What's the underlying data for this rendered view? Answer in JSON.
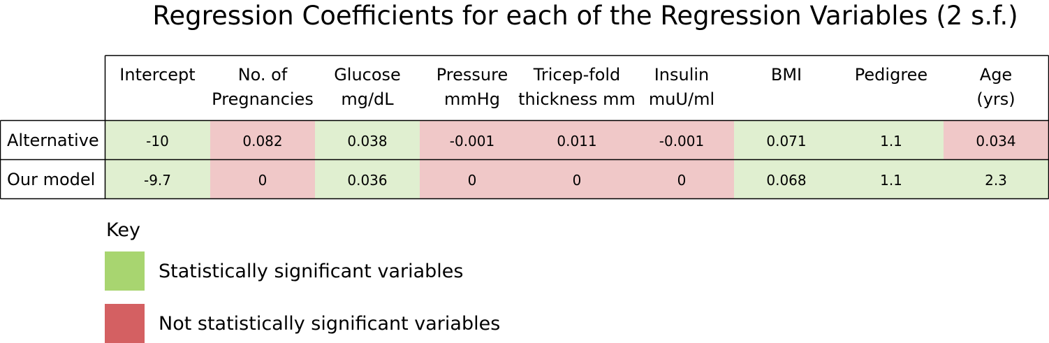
{
  "colors": {
    "significant_cell": "#e0efd0",
    "not_significant_cell": "#f0c8c8",
    "significant_swatch": "#a8d570",
    "not_significant_swatch": "#d46062",
    "border": "#000000"
  },
  "chart_data": {
    "type": "table",
    "title": "Regression Coefficients for each of the Regression Variables (2 s.f.)",
    "columns": [
      [
        "Intercept"
      ],
      [
        "No. of",
        "Pregnancies"
      ],
      [
        "Glucose",
        "mg/dL"
      ],
      [
        "Pressure",
        "mmHg"
      ],
      [
        "Tricep-fold",
        "thickness mm"
      ],
      [
        "Insulin",
        "muU/ml"
      ],
      [
        "BMI"
      ],
      [
        "Pedigree"
      ],
      [
        "Age",
        "(yrs)"
      ]
    ],
    "rows": [
      {
        "label": "Alternative",
        "values": [
          "-10",
          "0.082",
          "0.038",
          "-0.001",
          "0.011",
          "-0.001",
          "0.071",
          "1.1",
          "0.034"
        ],
        "significant": [
          true,
          false,
          true,
          false,
          false,
          false,
          true,
          true,
          false
        ]
      },
      {
        "label": "Our model",
        "values": [
          "-9.7",
          "0",
          "0.036",
          "0",
          "0",
          "0",
          "0.068",
          "1.1",
          "2.3"
        ],
        "significant": [
          true,
          false,
          true,
          false,
          false,
          false,
          true,
          true,
          true
        ]
      }
    ],
    "key": {
      "title": "Key",
      "items": [
        {
          "label": "Statistically significant variables",
          "significant": true
        },
        {
          "label": "Not statistically significant variables",
          "significant": false
        }
      ]
    }
  }
}
